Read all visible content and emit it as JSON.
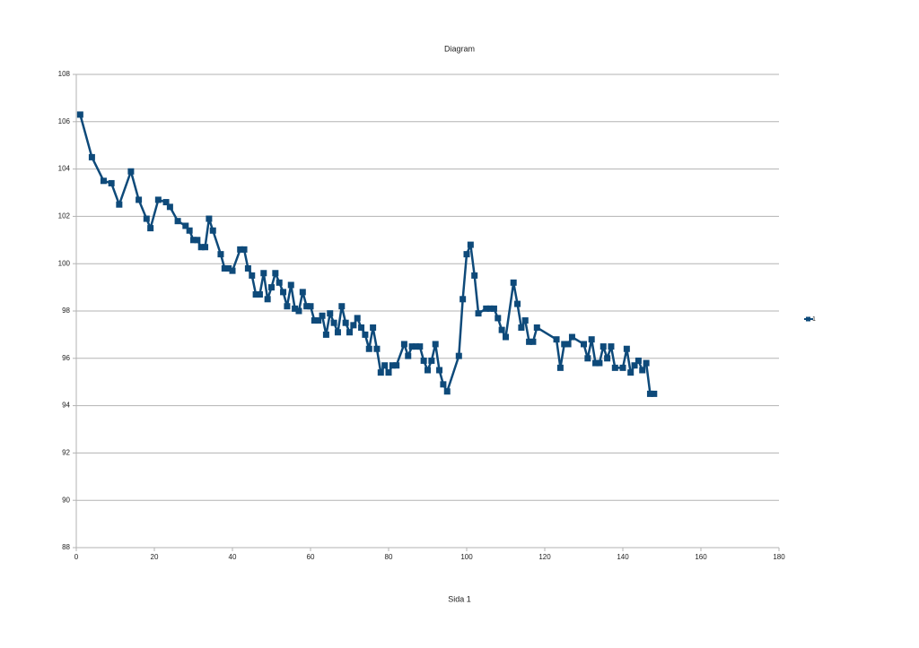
{
  "chart_data": {
    "type": "line",
    "title": "Diagram",
    "x": [
      1,
      4,
      7,
      9,
      11,
      14,
      16,
      18,
      19,
      21,
      23,
      24,
      26,
      28,
      29,
      30,
      31,
      32,
      33,
      34,
      35,
      37,
      38,
      39,
      40,
      42,
      43,
      44,
      45,
      46,
      47,
      48,
      49,
      50,
      51,
      52,
      53,
      54,
      55,
      56,
      57,
      58,
      59,
      60,
      61,
      62,
      63,
      64,
      65,
      66,
      67,
      68,
      69,
      70,
      71,
      72,
      73,
      74,
      75,
      76,
      77,
      78,
      79,
      80,
      81,
      82,
      84,
      85,
      86,
      87,
      88,
      89,
      90,
      91,
      92,
      93,
      94,
      95,
      98,
      99,
      100,
      101,
      102,
      103,
      105,
      106,
      107,
      108,
      109,
      110,
      112,
      113,
      114,
      115,
      116,
      117,
      118,
      123,
      124,
      125,
      126,
      127,
      130,
      131,
      132,
      133,
      134,
      135,
      136,
      137,
      138,
      140,
      141,
      142,
      143,
      144,
      145,
      146,
      147,
      148
    ],
    "series": [
      {
        "name": "1",
        "color": "#0e4a7a",
        "values": [
          106.3,
          104.5,
          103.5,
          103.4,
          102.5,
          103.9,
          102.7,
          101.9,
          101.5,
          102.7,
          102.6,
          102.4,
          101.8,
          101.6,
          101.4,
          101.0,
          101.0,
          100.7,
          100.7,
          101.9,
          101.4,
          100.4,
          99.8,
          99.8,
          99.7,
          100.6,
          100.6,
          99.8,
          99.5,
          98.7,
          98.7,
          99.6,
          98.5,
          99.0,
          99.6,
          99.2,
          98.8,
          98.2,
          99.1,
          98.1,
          98.0,
          98.8,
          98.2,
          98.2,
          97.6,
          97.6,
          97.8,
          97.0,
          97.9,
          97.5,
          97.1,
          98.2,
          97.5,
          97.1,
          97.4,
          97.7,
          97.3,
          97.0,
          96.4,
          97.3,
          96.4,
          95.4,
          95.7,
          95.4,
          95.7,
          95.7,
          96.6,
          96.1,
          96.5,
          96.5,
          96.5,
          95.9,
          95.5,
          95.9,
          96.6,
          95.5,
          94.9,
          94.6,
          96.1,
          98.5,
          100.4,
          100.8,
          99.5,
          97.9,
          98.1,
          98.1,
          98.1,
          97.7,
          97.2,
          96.9,
          99.2,
          98.3,
          97.3,
          97.6,
          96.7,
          96.7,
          97.3,
          96.8,
          95.6,
          96.6,
          96.6,
          96.9,
          96.6,
          96.0,
          96.8,
          95.8,
          95.8,
          96.5,
          96.0,
          96.5,
          95.6,
          95.6,
          96.4,
          95.4,
          95.7,
          95.9,
          95.5,
          95.8,
          94.5,
          94.5
        ]
      }
    ],
    "xlim": [
      0,
      180
    ],
    "xticks": [
      0,
      20,
      40,
      60,
      80,
      100,
      120,
      140,
      160,
      180
    ],
    "ylim": [
      88,
      108
    ],
    "yticks": [
      88,
      90,
      92,
      94,
      96,
      98,
      100,
      102,
      104,
      106,
      108
    ],
    "grid": true,
    "legend": "right"
  },
  "footer": "Sida 1"
}
